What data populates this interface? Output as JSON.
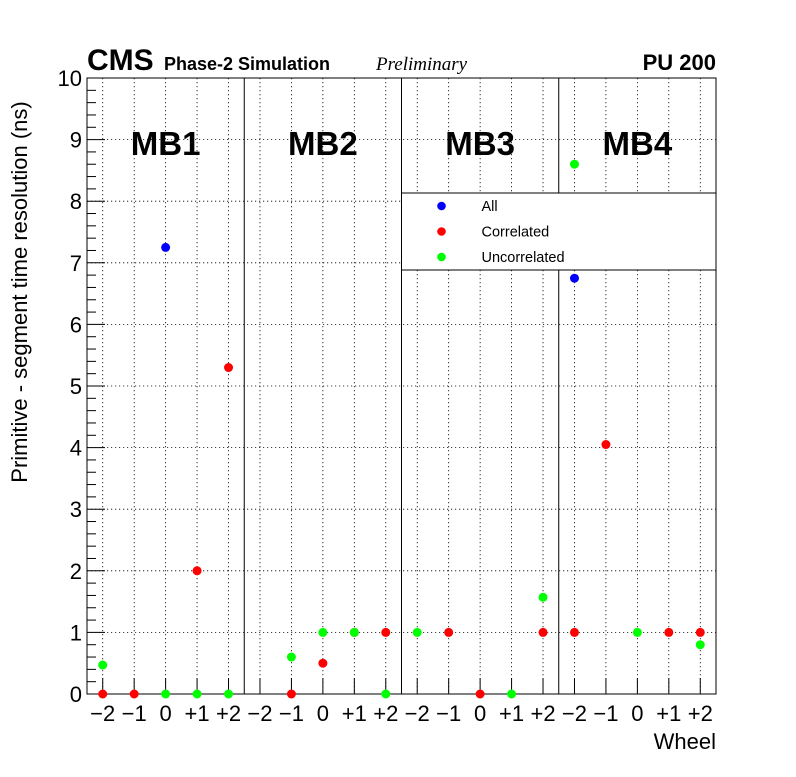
{
  "header": {
    "cms": "CMS",
    "phase": "Phase-2 Simulation",
    "preliminary": "Preliminary",
    "pileup": "PU 200"
  },
  "chart_data": {
    "type": "scatter",
    "xlabel": "Wheel",
    "ylabel": "Primitive - segment time resolution (ns)",
    "ylim": [
      0,
      10
    ],
    "yticks": [
      "0",
      "1",
      "2",
      "3",
      "4",
      "5",
      "6",
      "7",
      "8",
      "9",
      "10"
    ],
    "grid": true,
    "legend_position": "top-right",
    "stations": [
      "MB1",
      "MB2",
      "MB3",
      "MB4"
    ],
    "wheels": [
      "−2",
      "−1",
      "0",
      "+1",
      "+2"
    ],
    "series": [
      {
        "name": "All",
        "color": "#0000ff",
        "points": [
          {
            "station": "MB1",
            "wheel": "0",
            "y": 7.25
          },
          {
            "station": "MB4",
            "wheel": "−2",
            "y": 6.75
          }
        ]
      },
      {
        "name": "Correlated",
        "color": "#ff0000",
        "points": [
          {
            "station": "MB1",
            "wheel": "−2",
            "y": 0
          },
          {
            "station": "MB1",
            "wheel": "−1",
            "y": 0
          },
          {
            "station": "MB1",
            "wheel": "+1",
            "y": 2.0
          },
          {
            "station": "MB1",
            "wheel": "+2",
            "y": 5.3
          },
          {
            "station": "MB2",
            "wheel": "−1",
            "y": 0
          },
          {
            "station": "MB2",
            "wheel": "0",
            "y": 0.5
          },
          {
            "station": "MB2",
            "wheel": "+1",
            "y": 1.0
          },
          {
            "station": "MB2",
            "wheel": "+2",
            "y": 1.0
          },
          {
            "station": "MB3",
            "wheel": "−1",
            "y": 1.0
          },
          {
            "station": "MB3",
            "wheel": "0",
            "y": 0
          },
          {
            "station": "MB3",
            "wheel": "+2",
            "y": 1.0
          },
          {
            "station": "MB4",
            "wheel": "−2",
            "y": 1.0
          },
          {
            "station": "MB4",
            "wheel": "−1",
            "y": 4.05
          },
          {
            "station": "MB4",
            "wheel": "+1",
            "y": 1.0
          },
          {
            "station": "MB4",
            "wheel": "+2",
            "y": 1.0
          }
        ]
      },
      {
        "name": "Uncorrelated",
        "color": "#00ff00",
        "points": [
          {
            "station": "MB1",
            "wheel": "−2",
            "y": 0.47
          },
          {
            "station": "MB1",
            "wheel": "0",
            "y": 0
          },
          {
            "station": "MB1",
            "wheel": "+1",
            "y": 0
          },
          {
            "station": "MB1",
            "wheel": "+2",
            "y": 0
          },
          {
            "station": "MB2",
            "wheel": "−1",
            "y": 0.6
          },
          {
            "station": "MB2",
            "wheel": "0",
            "y": 1.0
          },
          {
            "station": "MB2",
            "wheel": "+1",
            "y": 1.0
          },
          {
            "station": "MB2",
            "wheel": "+2",
            "y": 0
          },
          {
            "station": "MB3",
            "wheel": "−2",
            "y": 1.0
          },
          {
            "station": "MB3",
            "wheel": "+1",
            "y": 0
          },
          {
            "station": "MB3",
            "wheel": "+2",
            "y": 1.57
          },
          {
            "station": "MB4",
            "wheel": "−2",
            "y": 8.6
          },
          {
            "station": "MB4",
            "wheel": "0",
            "y": 1.0
          },
          {
            "station": "MB4",
            "wheel": "+2",
            "y": 0.8
          }
        ]
      }
    ]
  }
}
